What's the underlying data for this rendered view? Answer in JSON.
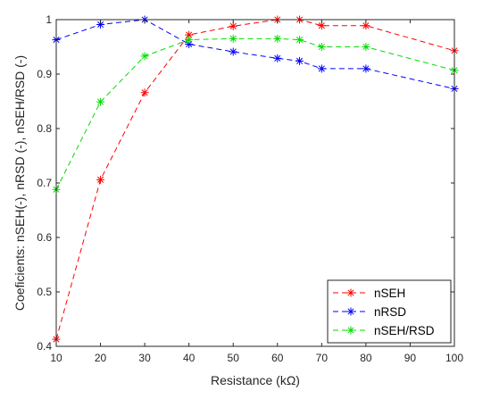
{
  "chart_data": {
    "type": "line",
    "title": "",
    "xlabel": "Resistance (kΩ)",
    "ylabel": "Coeficients: nSEH(-), nRSD (-), nSEH/RSD (-)",
    "xlim": [
      10,
      100
    ],
    "ylim": [
      0.4,
      1
    ],
    "xticks": [
      10,
      20,
      30,
      40,
      50,
      60,
      70,
      80,
      90,
      100
    ],
    "yticks": [
      0.4,
      0.5,
      0.6,
      0.7,
      0.8,
      0.9,
      1
    ],
    "grid": false,
    "legend_position": "bottom-right",
    "x": [
      10,
      20,
      30,
      40,
      50,
      60,
      65,
      70,
      80,
      100
    ],
    "series": [
      {
        "name": "nSEH",
        "color": "#ff0000",
        "values": [
          0.413,
          0.706,
          0.866,
          0.972,
          0.988,
          1.0,
          1.0,
          0.989,
          0.989,
          0.943
        ]
      },
      {
        "name": "nRSD",
        "color": "#0000ff",
        "values": [
          0.963,
          0.991,
          1.0,
          0.955,
          0.941,
          0.929,
          0.924,
          0.91,
          0.91,
          0.873
        ]
      },
      {
        "name": "nSEH/RSD",
        "color": "#00dd00",
        "values": [
          0.688,
          0.849,
          0.933,
          0.963,
          0.965,
          0.965,
          0.963,
          0.95,
          0.95,
          0.907
        ]
      }
    ]
  }
}
